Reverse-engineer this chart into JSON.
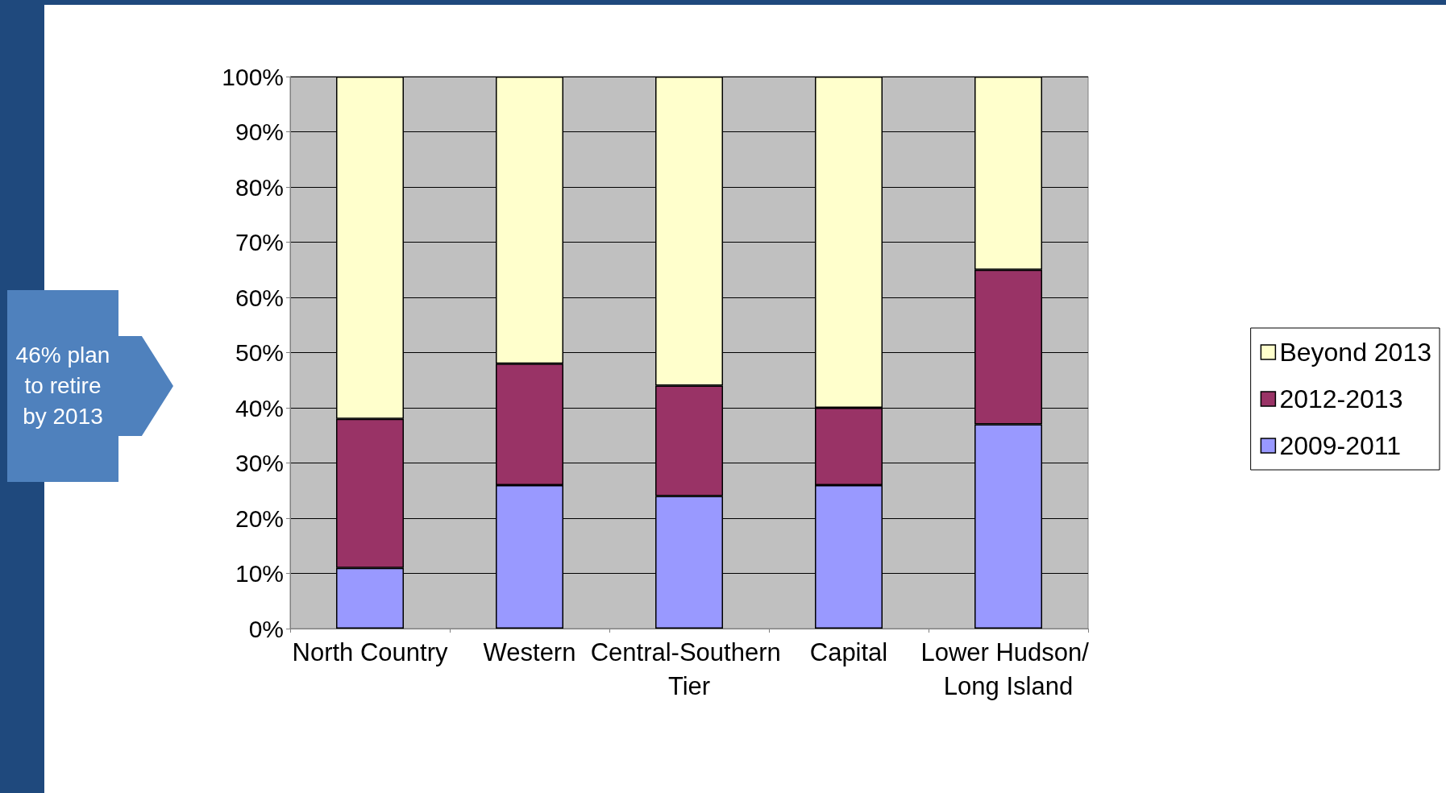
{
  "chart_data": {
    "type": "bar",
    "stacked": true,
    "categories": [
      "North Country",
      "Western",
      "Central-Southern Tier",
      "Capital",
      "Lower Hudson/ Long Island"
    ],
    "series": [
      {
        "name": "2009-2011",
        "color": "#9999ff",
        "values": [
          11,
          26,
          24,
          26,
          37
        ]
      },
      {
        "name": "2012-2013",
        "color": "#993366",
        "values": [
          27,
          22,
          20,
          14,
          28
        ]
      },
      {
        "name": "Beyond 2013",
        "color": "#ffffcc",
        "values": [
          62,
          52,
          56,
          60,
          35
        ]
      }
    ],
    "ylim": [
      0,
      100
    ],
    "yticks": [
      {
        "value": 0,
        "label": "0%"
      },
      {
        "value": 10,
        "label": "10%"
      },
      {
        "value": 20,
        "label": "20%"
      },
      {
        "value": 30,
        "label": "30%"
      },
      {
        "value": 40,
        "label": "40%"
      },
      {
        "value": 50,
        "label": "50%"
      },
      {
        "value": 60,
        "label": "60%"
      },
      {
        "value": 70,
        "label": "70%"
      },
      {
        "value": 80,
        "label": "80%"
      },
      {
        "value": 90,
        "label": "90%"
      },
      {
        "value": 100,
        "label": "100%"
      }
    ],
    "grid": "y",
    "legend": "right",
    "annotations": [
      "46% plan to retire by 2013"
    ]
  }
}
